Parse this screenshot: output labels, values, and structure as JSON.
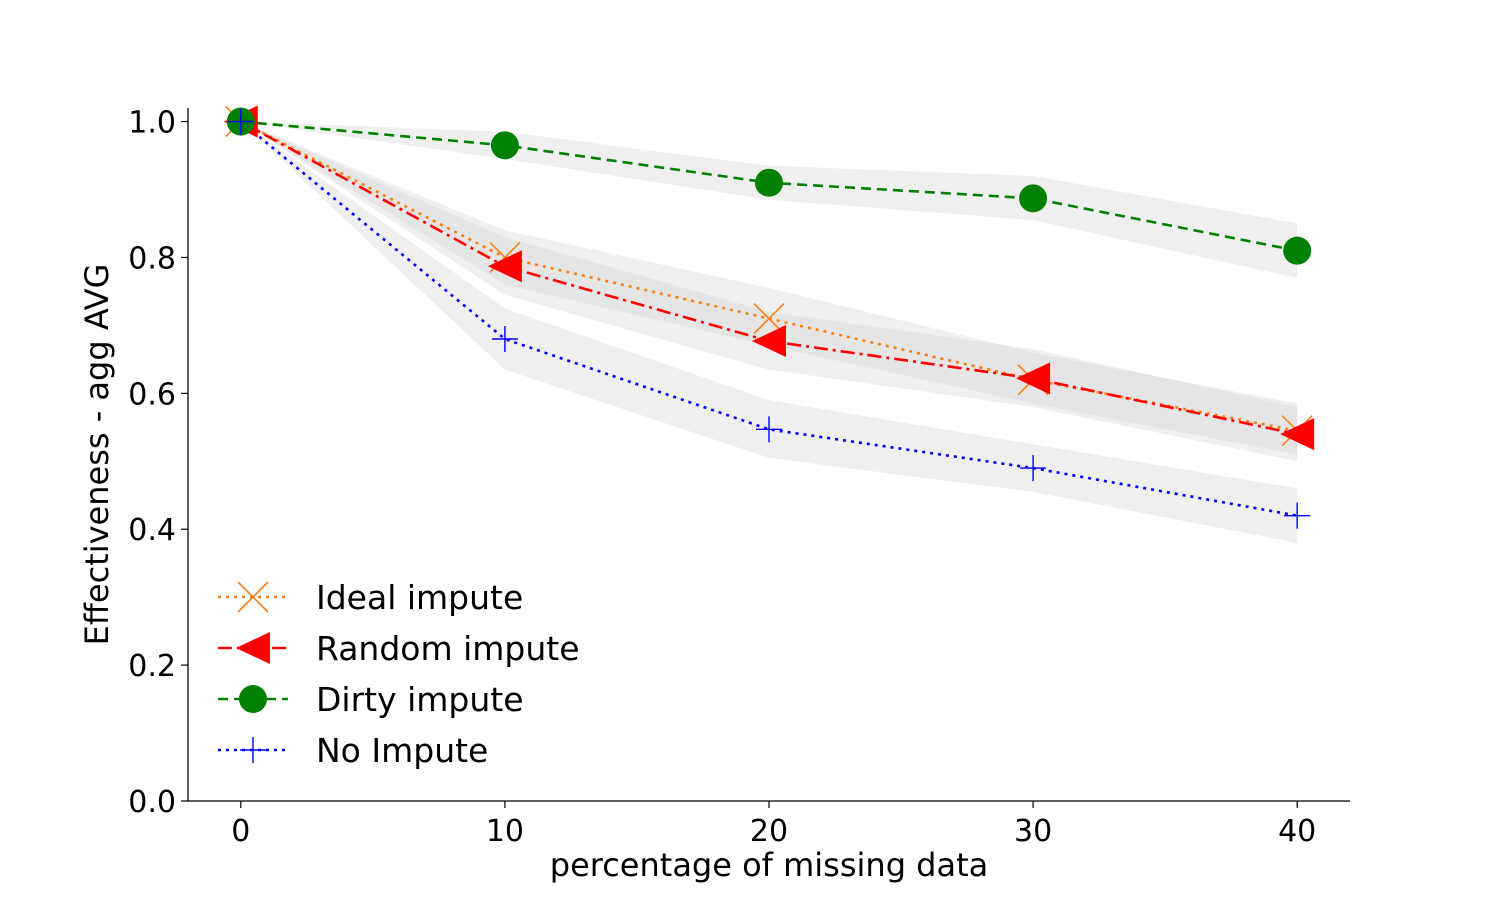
{
  "chart_data": {
    "type": "line",
    "title": "",
    "xlabel": "percentage of missing data",
    "ylabel": "Effectiveness - agg AVG",
    "x": [
      0,
      10,
      20,
      30,
      40
    ],
    "xticks": [
      0,
      10,
      20,
      30,
      40
    ],
    "yticks": [
      0.0,
      0.2,
      0.4,
      0.6,
      0.8,
      1.0
    ],
    "xtick_labels": [
      "0",
      "10",
      "20",
      "30",
      "40"
    ],
    "ytick_labels": [
      "0.0",
      "0.2",
      "0.4",
      "0.6",
      "0.8",
      "1.0"
    ],
    "xlim": [
      -2,
      42
    ],
    "ylim": [
      0.0,
      1.02
    ],
    "grid": false,
    "legend_position": "bottom-left",
    "series": [
      {
        "name": "Ideal impute",
        "values": [
          1.0,
          0.8,
          0.71,
          0.62,
          0.545
        ],
        "lower": [
          1.0,
          0.76,
          0.67,
          0.585,
          0.51
        ],
        "upper": [
          1.0,
          0.84,
          0.755,
          0.66,
          0.585
        ],
        "color": "#ff7f0e",
        "dash": "dotted",
        "marker": "x"
      },
      {
        "name": "Random impute",
        "values": [
          1.0,
          0.787,
          0.677,
          0.622,
          0.54
        ],
        "lower": [
          1.0,
          0.745,
          0.635,
          0.58,
          0.5
        ],
        "upper": [
          1.0,
          0.83,
          0.72,
          0.665,
          0.58
        ],
        "color": "#ff0000",
        "dash": "dashdot",
        "marker": "triangle-left"
      },
      {
        "name": "Dirty impute",
        "values": [
          1.0,
          0.965,
          0.91,
          0.887,
          0.81
        ],
        "lower": [
          1.0,
          0.945,
          0.885,
          0.855,
          0.77
        ],
        "upper": [
          1.0,
          0.985,
          0.935,
          0.92,
          0.85
        ],
        "color": "#008000",
        "dash": "dashed",
        "marker": "circle"
      },
      {
        "name": "No Impute",
        "values": [
          1.0,
          0.68,
          0.547,
          0.49,
          0.42
        ],
        "lower": [
          1.0,
          0.635,
          0.505,
          0.455,
          0.38
        ],
        "upper": [
          1.0,
          0.725,
          0.59,
          0.525,
          0.46
        ],
        "color": "#0000ff",
        "dash": "dotted",
        "marker": "plus"
      }
    ]
  }
}
